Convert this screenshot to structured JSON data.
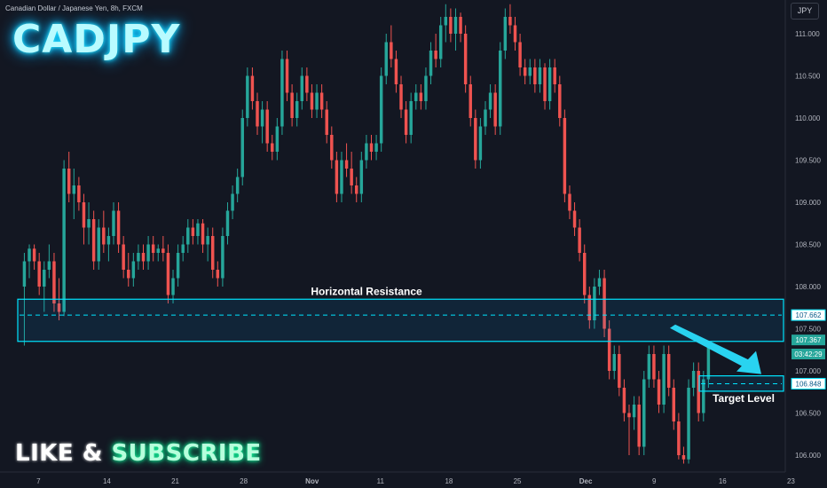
{
  "header": {
    "symbol_description": "Canadian Dollar / Japanese Yen, 8h, FXCM",
    "title": "CADJPY",
    "currency_button": "JPY"
  },
  "footer": {
    "cta_part1": "LIKE & ",
    "cta_part2": "SUBSCRIBE"
  },
  "colors": {
    "background": "#131722",
    "bullish": "#26a69a",
    "bearish": "#ef5350",
    "zone": "#00e5ff",
    "arrow": "#29d3f0"
  },
  "chart_data": {
    "type": "candlestick",
    "instrument": "CADJPY",
    "timeframe": "8h",
    "ylim": [
      105.8,
      111.4
    ],
    "y_ticks": [
      "106.000",
      "106.500",
      "107.000",
      "107.500",
      "108.000",
      "108.500",
      "109.000",
      "109.500",
      "110.000",
      "110.500",
      "111.000"
    ],
    "y_tick_values": [
      106.0,
      106.5,
      107.0,
      107.5,
      108.0,
      108.5,
      109.0,
      109.5,
      110.0,
      110.5,
      111.0
    ],
    "x_ticks": [
      "7",
      "14",
      "21",
      "28",
      "Nov",
      "11",
      "18",
      "25",
      "Dec",
      "9",
      "16",
      "23"
    ],
    "x_tick_positions": [
      0.04,
      0.96,
      1.88,
      2.8,
      3.72,
      4.64,
      5.56,
      6.48,
      7.4,
      8.32,
      9.24,
      10.16
    ],
    "candles_per_week": 15,
    "first_candle_week": -0.15,
    "candles": [
      [
        108.0,
        108.4,
        107.3,
        108.3
      ],
      [
        108.3,
        108.5,
        108.1,
        108.45
      ],
      [
        108.45,
        108.5,
        108.2,
        108.3
      ],
      [
        108.3,
        108.4,
        107.9,
        108.0
      ],
      [
        108.0,
        108.3,
        107.7,
        108.2
      ],
      [
        108.2,
        108.5,
        108.1,
        108.3
      ],
      [
        108.3,
        108.4,
        107.7,
        107.8
      ],
      [
        107.8,
        108.1,
        107.6,
        107.7
      ],
      [
        107.7,
        109.5,
        107.65,
        109.4
      ],
      [
        109.4,
        109.6,
        109.0,
        109.1
      ],
      [
        109.1,
        109.4,
        108.8,
        109.2
      ],
      [
        109.2,
        109.3,
        108.9,
        109.0
      ],
      [
        109.0,
        109.1,
        108.5,
        108.7
      ],
      [
        108.7,
        109.0,
        108.5,
        108.8
      ],
      [
        108.8,
        108.9,
        108.2,
        108.3
      ],
      [
        108.3,
        108.8,
        108.2,
        108.7
      ],
      [
        108.7,
        108.9,
        108.4,
        108.5
      ],
      [
        108.5,
        108.7,
        108.3,
        108.6
      ],
      [
        108.6,
        109.0,
        108.5,
        108.9
      ],
      [
        108.9,
        109.0,
        108.4,
        108.5
      ],
      [
        108.5,
        108.6,
        108.1,
        108.2
      ],
      [
        108.2,
        108.4,
        108.0,
        108.1
      ],
      [
        108.1,
        108.4,
        108.0,
        108.3
      ],
      [
        108.3,
        108.5,
        108.2,
        108.4
      ],
      [
        108.4,
        108.5,
        108.2,
        108.3
      ],
      [
        108.3,
        108.6,
        108.2,
        108.5
      ],
      [
        108.5,
        108.6,
        108.3,
        108.4
      ],
      [
        108.4,
        108.5,
        108.3,
        108.45
      ],
      [
        108.45,
        108.6,
        108.3,
        108.4
      ],
      [
        108.4,
        108.5,
        107.8,
        107.9
      ],
      [
        107.9,
        108.2,
        107.8,
        108.1
      ],
      [
        108.1,
        108.5,
        108.0,
        108.4
      ],
      [
        108.4,
        108.6,
        108.3,
        108.5
      ],
      [
        108.5,
        108.8,
        108.4,
        108.7
      ],
      [
        108.7,
        108.8,
        108.5,
        108.6
      ],
      [
        108.6,
        108.8,
        108.5,
        108.75
      ],
      [
        108.75,
        108.8,
        108.4,
        108.5
      ],
      [
        108.5,
        108.7,
        108.3,
        108.6
      ],
      [
        108.6,
        108.7,
        108.1,
        108.2
      ],
      [
        108.2,
        108.3,
        108.0,
        108.1
      ],
      [
        108.1,
        108.7,
        108.0,
        108.6
      ],
      [
        108.6,
        109.0,
        108.5,
        108.9
      ],
      [
        108.9,
        109.2,
        108.8,
        109.1
      ],
      [
        109.1,
        109.4,
        109.0,
        109.3
      ],
      [
        109.3,
        110.1,
        109.2,
        110.0
      ],
      [
        110.0,
        110.6,
        109.9,
        110.5
      ],
      [
        110.5,
        110.6,
        110.1,
        110.2
      ],
      [
        110.2,
        110.3,
        109.8,
        109.9
      ],
      [
        109.9,
        110.2,
        109.7,
        110.1
      ],
      [
        110.1,
        110.2,
        109.6,
        109.7
      ],
      [
        109.7,
        109.8,
        109.5,
        109.6
      ],
      [
        109.6,
        110.0,
        109.5,
        109.9
      ],
      [
        109.9,
        110.8,
        109.8,
        110.7
      ],
      [
        110.7,
        110.8,
        110.2,
        110.3
      ],
      [
        110.3,
        110.4,
        109.9,
        110.0
      ],
      [
        110.0,
        110.3,
        109.9,
        110.2
      ],
      [
        110.2,
        110.6,
        110.1,
        110.5
      ],
      [
        110.5,
        110.6,
        110.2,
        110.3
      ],
      [
        110.3,
        110.4,
        110.0,
        110.1
      ],
      [
        110.1,
        110.4,
        110.0,
        110.3
      ],
      [
        110.3,
        110.4,
        110.0,
        110.1
      ],
      [
        110.1,
        110.2,
        109.7,
        109.8
      ],
      [
        109.8,
        109.9,
        109.4,
        109.5
      ],
      [
        109.5,
        109.6,
        109.0,
        109.1
      ],
      [
        109.1,
        109.6,
        109.0,
        109.5
      ],
      [
        109.5,
        109.7,
        109.3,
        109.4
      ],
      [
        109.4,
        109.6,
        109.1,
        109.2
      ],
      [
        109.2,
        109.3,
        109.0,
        109.1
      ],
      [
        109.1,
        109.6,
        109.0,
        109.5
      ],
      [
        109.5,
        109.8,
        109.4,
        109.7
      ],
      [
        109.7,
        109.8,
        109.5,
        109.6
      ],
      [
        109.6,
        109.8,
        109.5,
        109.7
      ],
      [
        109.7,
        110.6,
        109.6,
        110.5
      ],
      [
        110.5,
        111.0,
        110.4,
        110.9
      ],
      [
        110.9,
        111.1,
        110.6,
        110.7
      ],
      [
        110.7,
        110.8,
        110.3,
        110.4
      ],
      [
        110.4,
        110.5,
        110.0,
        110.1
      ],
      [
        110.1,
        110.2,
        109.7,
        109.8
      ],
      [
        109.8,
        110.3,
        109.7,
        110.2
      ],
      [
        110.2,
        110.4,
        110.1,
        110.3
      ],
      [
        110.3,
        110.4,
        110.1,
        110.2
      ],
      [
        110.2,
        110.6,
        110.1,
        110.5
      ],
      [
        110.5,
        110.9,
        110.4,
        110.8
      ],
      [
        110.8,
        111.0,
        110.6,
        110.7
      ],
      [
        110.7,
        111.2,
        110.6,
        111.1
      ],
      [
        111.1,
        111.35,
        110.9,
        111.2
      ],
      [
        111.2,
        111.3,
        110.9,
        111.0
      ],
      [
        111.0,
        111.3,
        110.8,
        111.2
      ],
      [
        111.2,
        111.25,
        110.9,
        111.0
      ],
      [
        111.0,
        111.1,
        110.3,
        110.4
      ],
      [
        110.4,
        110.5,
        109.9,
        110.0
      ],
      [
        110.0,
        110.1,
        109.4,
        109.5
      ],
      [
        109.5,
        110.0,
        109.4,
        109.9
      ],
      [
        109.9,
        110.2,
        109.8,
        110.1
      ],
      [
        110.1,
        110.4,
        110.0,
        110.3
      ],
      [
        110.3,
        110.4,
        109.8,
        109.9
      ],
      [
        109.9,
        110.9,
        109.8,
        110.8
      ],
      [
        110.8,
        111.3,
        110.7,
        111.2
      ],
      [
        111.2,
        111.35,
        111.0,
        111.1
      ],
      [
        111.1,
        111.2,
        110.8,
        110.9
      ],
      [
        110.9,
        111.0,
        110.5,
        110.6
      ],
      [
        110.6,
        110.7,
        110.4,
        110.5
      ],
      [
        110.5,
        110.7,
        110.4,
        110.6
      ],
      [
        110.6,
        110.7,
        110.3,
        110.4
      ],
      [
        110.4,
        110.7,
        110.3,
        110.6
      ],
      [
        110.6,
        110.65,
        110.1,
        110.2
      ],
      [
        110.2,
        110.7,
        110.1,
        110.6
      ],
      [
        110.6,
        110.7,
        110.3,
        110.4
      ],
      [
        110.4,
        110.5,
        109.9,
        110.0
      ],
      [
        110.0,
        110.1,
        109.0,
        109.1
      ],
      [
        109.1,
        109.2,
        108.8,
        108.9
      ],
      [
        108.9,
        109.0,
        108.6,
        108.7
      ],
      [
        108.7,
        108.8,
        108.3,
        108.4
      ],
      [
        108.4,
        108.5,
        107.8,
        107.9
      ],
      [
        107.9,
        108.0,
        107.5,
        107.6
      ],
      [
        107.6,
        108.1,
        107.5,
        108.0
      ],
      [
        108.0,
        108.2,
        107.9,
        108.1
      ],
      [
        108.1,
        108.2,
        107.4,
        107.5
      ],
      [
        107.5,
        107.6,
        106.9,
        107.0
      ],
      [
        107.0,
        107.3,
        106.9,
        107.2
      ],
      [
        107.2,
        107.3,
        106.7,
        106.8
      ],
      [
        106.8,
        106.9,
        106.4,
        106.5
      ],
      [
        106.5,
        106.6,
        106.0,
        106.45
      ],
      [
        106.45,
        106.7,
        106.3,
        106.6
      ],
      [
        106.6,
        106.7,
        106.0,
        106.1
      ],
      [
        106.1,
        107.0,
        106.0,
        106.9
      ],
      [
        106.9,
        107.3,
        106.8,
        107.2
      ],
      [
        107.2,
        107.3,
        106.8,
        106.9
      ],
      [
        106.9,
        107.0,
        106.5,
        106.6
      ],
      [
        106.6,
        107.3,
        106.5,
        107.2
      ],
      [
        107.2,
        107.3,
        106.7,
        106.8
      ],
      [
        106.8,
        106.9,
        106.3,
        106.4
      ],
      [
        106.4,
        106.5,
        105.95,
        106.0
      ],
      [
        106.0,
        106.1,
        105.9,
        105.95
      ],
      [
        105.95,
        106.9,
        105.9,
        106.8
      ],
      [
        106.8,
        107.1,
        106.7,
        107.0
      ],
      [
        107.0,
        107.1,
        106.4,
        106.5
      ],
      [
        106.5,
        107.0,
        106.4,
        106.9
      ],
      [
        106.9,
        107.35,
        106.8,
        107.3
      ]
    ],
    "annotations": {
      "resistance_label": "Horizontal Resistance",
      "resistance_zone": [
        107.35,
        107.85
      ],
      "resistance_level": 107.662,
      "target_label": "Target Level",
      "target_zone": [
        106.78,
        106.92
      ],
      "target_level": 106.848
    },
    "price_tags": [
      {
        "label": "107.662",
        "value": 107.662,
        "style": "zone"
      },
      {
        "label": "107.367",
        "value": 107.367,
        "style": "current"
      },
      {
        "label": "03:42:29",
        "value": 107.2,
        "style": "countdown"
      },
      {
        "label": "106.848",
        "value": 106.848,
        "style": "zone"
      }
    ]
  }
}
